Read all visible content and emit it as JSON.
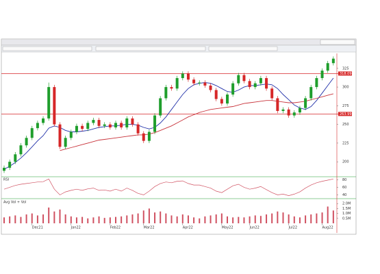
{
  "chart_data": [
    {
      "type": "candlestick",
      "categories": [
        null,
        null,
        null,
        null,
        null,
        "Dec21",
        null,
        null,
        null,
        null,
        null,
        null,
        "Jan22",
        null,
        null,
        null,
        null,
        null,
        null,
        "Feb22",
        null,
        null,
        null,
        null,
        null,
        "Mar22",
        null,
        null,
        null,
        null,
        null,
        null,
        "Apr22",
        null,
        null,
        null,
        null,
        null,
        null,
        "May22",
        null,
        null,
        null,
        null,
        "Jun22",
        null,
        null,
        null,
        null,
        null,
        null,
        "Jul22",
        null,
        null,
        null,
        null,
        null,
        "Aug22",
        null,
        null
      ],
      "open": [
        188,
        192,
        200,
        210,
        222,
        232,
        245,
        252,
        258,
        300,
        250,
        220,
        232,
        240,
        248,
        244,
        252,
        256,
        248,
        250,
        246,
        252,
        246,
        258,
        250,
        238,
        228,
        240,
        262,
        285,
        300,
        298,
        312,
        318,
        310,
        305,
        306,
        302,
        296,
        284,
        278,
        290,
        305,
        316,
        308,
        300,
        305,
        312,
        298,
        285,
        268,
        270,
        262,
        266,
        272,
        285,
        300,
        312,
        322,
        332
      ],
      "high": [
        195,
        203,
        213,
        225,
        235,
        248,
        255,
        261,
        306,
        303,
        253,
        235,
        243,
        251,
        251,
        255,
        259,
        259,
        253,
        253,
        255,
        255,
        261,
        261,
        253,
        241,
        243,
        265,
        288,
        303,
        303,
        315,
        321,
        321,
        313,
        309,
        309,
        305,
        299,
        287,
        293,
        308,
        319,
        319,
        311,
        308,
        315,
        315,
        301,
        288,
        273,
        273,
        269,
        275,
        288,
        303,
        315,
        325,
        335,
        341
      ],
      "low": [
        185,
        189,
        197,
        207,
        219,
        229,
        242,
        249,
        255,
        247,
        217,
        217,
        229,
        237,
        241,
        241,
        249,
        245,
        245,
        243,
        243,
        243,
        243,
        247,
        235,
        225,
        225,
        237,
        259,
        282,
        295,
        295,
        309,
        307,
        302,
        302,
        299,
        293,
        281,
        275,
        275,
        287,
        302,
        305,
        297,
        297,
        302,
        295,
        282,
        265,
        265,
        259,
        259,
        263,
        269,
        282,
        297,
        309,
        319,
        329
      ],
      "close": [
        192,
        200,
        210,
        222,
        232,
        245,
        252,
        258,
        300,
        250,
        220,
        232,
        240,
        248,
        244,
        252,
        256,
        248,
        250,
        246,
        252,
        246,
        258,
        250,
        238,
        228,
        240,
        262,
        285,
        300,
        298,
        312,
        318,
        310,
        305,
        306,
        302,
        296,
        284,
        278,
        290,
        305,
        316,
        308,
        300,
        305,
        312,
        298,
        285,
        268,
        270,
        262,
        266,
        272,
        285,
        300,
        312,
        322,
        332,
        338
      ],
      "up_color": "#1f9e2c",
      "down_color": "#d62728",
      "overlays": [
        {
          "color": "#1f2fa8",
          "values": [
            190,
            194,
            199,
            205,
            212,
            220,
            228,
            235,
            245,
            248,
            246,
            242,
            240,
            240,
            241,
            242,
            244,
            246,
            247,
            248,
            248,
            249,
            250,
            250,
            249,
            246,
            244,
            246,
            252,
            260,
            270,
            280,
            290,
            298,
            303,
            305,
            306,
            305,
            302,
            298,
            294,
            293,
            296,
            300,
            302,
            302,
            303,
            304,
            303,
            298,
            290,
            283,
            276,
            272,
            270,
            274,
            282,
            292,
            302,
            312
          ]
        },
        {
          "color": "#c8323a",
          "values": [
            null,
            null,
            null,
            null,
            null,
            null,
            null,
            null,
            null,
            null,
            215,
            217,
            219,
            221,
            223,
            225,
            227,
            229,
            230,
            231,
            232,
            233,
            234,
            235,
            236,
            236,
            237,
            239,
            242,
            245,
            248,
            252,
            256,
            260,
            263,
            266,
            268,
            270,
            271,
            272,
            273,
            274,
            276,
            278,
            279,
            280,
            281,
            282,
            282,
            281,
            280,
            279,
            279,
            280,
            281,
            283,
            285,
            287,
            289,
            291
          ]
        }
      ],
      "hlines": [
        318.09,
        263.99
      ],
      "hline_color": "#d62728",
      "ylim": [
        180,
        345
      ],
      "yticks": [
        200,
        225,
        250,
        275,
        300,
        325
      ]
    },
    {
      "type": "line",
      "title": "RSI",
      "color": "#d05060",
      "values": [
        55,
        60,
        65,
        68,
        70,
        72,
        74,
        75,
        82,
        55,
        40,
        48,
        52,
        55,
        52,
        56,
        58,
        52,
        53,
        50,
        55,
        50,
        58,
        52,
        44,
        40,
        50,
        62,
        70,
        74,
        72,
        76,
        77,
        70,
        66,
        66,
        62,
        58,
        50,
        46,
        55,
        64,
        68,
        60,
        55,
        58,
        62,
        54,
        46,
        40,
        42,
        38,
        42,
        48,
        58,
        66,
        72,
        76,
        79,
        82
      ],
      "ylim": [
        30,
        88
      ],
      "yticks": [
        40,
        60,
        80
      ]
    },
    {
      "type": "bar",
      "title": "Avg Vol + Vol",
      "color": "#d05060",
      "values": [
        600000,
        700000,
        800000,
        650000,
        900000,
        1000000,
        800000,
        900000,
        1600000,
        1200000,
        1400000,
        900000,
        700000,
        600000,
        650000,
        500000,
        600000,
        700000,
        550000,
        600000,
        650000,
        700000,
        800000,
        900000,
        1000000,
        1300000,
        1500000,
        1100000,
        1200000,
        1000000,
        800000,
        700000,
        900000,
        800000,
        600000,
        500000,
        700000,
        800000,
        900000,
        1000000,
        700000,
        600000,
        650000,
        600000,
        700000,
        800000,
        750000,
        900000,
        1000000,
        1200000,
        1100000,
        900000,
        700000,
        600000,
        800000,
        900000,
        1000000,
        1100000,
        1700000,
        1300000
      ],
      "ylim": [
        0,
        2500000
      ],
      "yticks": [
        {
          "value": 500000,
          "label": "0.5M"
        },
        {
          "value": 1000000,
          "label": "1.0M"
        },
        {
          "value": 1500000,
          "label": "1.5M"
        },
        {
          "value": 2000000,
          "label": "2.0M"
        }
      ]
    }
  ]
}
